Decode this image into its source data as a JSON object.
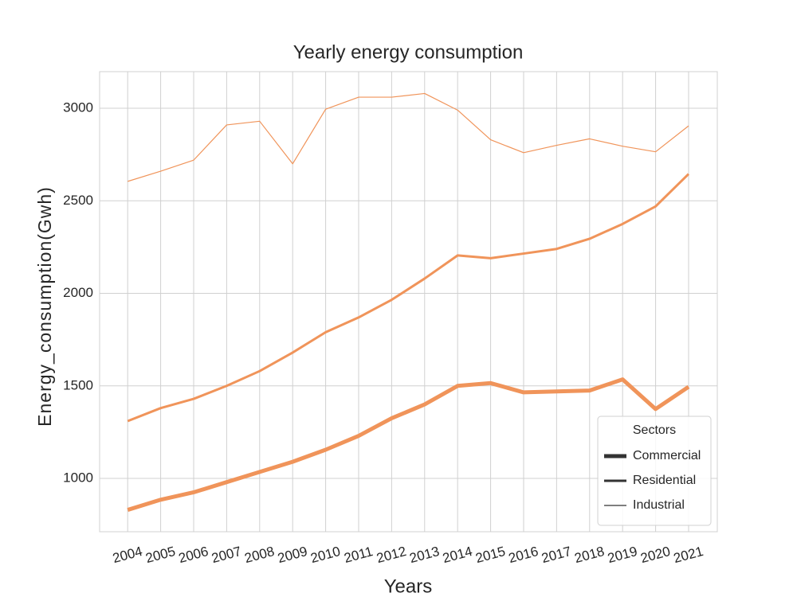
{
  "chart_data": {
    "type": "line",
    "title": "Yearly energy consumption",
    "x_label": "Years",
    "y_label": "Energy_consumption(Gwh)",
    "x": [
      2004,
      2005,
      2006,
      2007,
      2008,
      2009,
      2010,
      2011,
      2012,
      2013,
      2014,
      2015,
      2016,
      2017,
      2018,
      2019,
      2020,
      2021
    ],
    "xlim": [
      2003.15,
      2021.87
    ],
    "xticks": [
      2004,
      2005,
      2006,
      2007,
      2008,
      2009,
      2010,
      2011,
      2012,
      2013,
      2014,
      2015,
      2016,
      2017,
      2018,
      2019,
      2020,
      2021
    ],
    "ylim": [
      712,
      3198
    ],
    "yticks": [
      1000,
      1500,
      2000,
      2500,
      3000
    ],
    "grid": true,
    "legend_title": "Sectors",
    "legend_position": "lower right",
    "legend_line_color": "#333333",
    "series": [
      {
        "name": "Commercial",
        "color": "#f0945a",
        "linewidth": 5,
        "values": [
          830,
          885,
          925,
          980,
          1035,
          1090,
          1155,
          1230,
          1325,
          1400,
          1500,
          1515,
          1465,
          1470,
          1475,
          1535,
          1375,
          1495
        ]
      },
      {
        "name": "Residential",
        "color": "#f0945a",
        "linewidth": 3,
        "values": [
          1310,
          1380,
          1430,
          1500,
          1580,
          1680,
          1790,
          1870,
          1965,
          2080,
          2205,
          2190,
          2215,
          2240,
          2295,
          2375,
          2470,
          2645
        ]
      },
      {
        "name": "Industrial",
        "color": "#f0945a",
        "linewidth": 1.2,
        "values": [
          2605,
          2660,
          2720,
          2910,
          2930,
          2700,
          2995,
          3060,
          3060,
          3080,
          2990,
          2830,
          2760,
          2800,
          2835,
          2795,
          2765,
          2905
        ]
      }
    ]
  }
}
